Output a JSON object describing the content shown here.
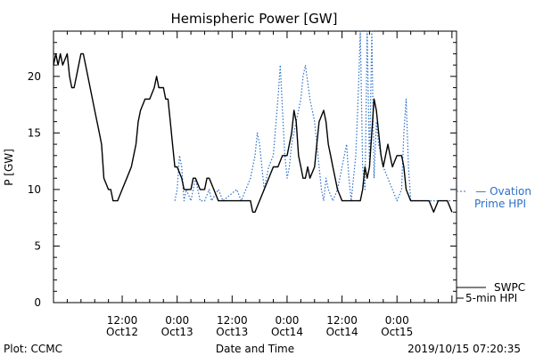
{
  "chart_data": {
    "type": "line",
    "title": "Hemispheric Power [GW]",
    "xlabel": "Date and Time",
    "ylabel": "P [GW]",
    "ylim": [
      0,
      24
    ],
    "yticks": [
      0,
      5,
      10,
      15,
      20
    ],
    "xlim": [
      -3,
      85
    ],
    "x_unit": "hours since 2019-10-12 00:00",
    "xticks": [
      {
        "x": 12,
        "time": "12:00",
        "date": "Oct12"
      },
      {
        "x": 24,
        "time": "0:00",
        "date": "Oct13"
      },
      {
        "x": 36,
        "time": "12:00",
        "date": "Oct13"
      },
      {
        "x": 48,
        "time": "0:00",
        "date": "Oct14"
      },
      {
        "x": 60,
        "time": "12:00",
        "date": "Oct14"
      },
      {
        "x": 72,
        "time": "0:00",
        "date": "Oct15"
      }
    ],
    "grid": false,
    "legend": "right",
    "series": [
      {
        "name": "SWPC 5-min HPI",
        "label_lines": [
          "SWPC",
          "5-min HPI"
        ],
        "style": "solid",
        "color": "#000000",
        "points": [
          [
            -3,
            21
          ],
          [
            -2.5,
            22
          ],
          [
            -2,
            21
          ],
          [
            -1.5,
            22
          ],
          [
            -1,
            21
          ],
          [
            0,
            22
          ],
          [
            0.5,
            20
          ],
          [
            1,
            19
          ],
          [
            1.5,
            19
          ],
          [
            2,
            20
          ],
          [
            3,
            22
          ],
          [
            3.5,
            22
          ],
          [
            4,
            21
          ],
          [
            5,
            19
          ],
          [
            6,
            17
          ],
          [
            7,
            15
          ],
          [
            7.5,
            14
          ],
          [
            8,
            11
          ],
          [
            9,
            10
          ],
          [
            9.5,
            10
          ],
          [
            10,
            9
          ],
          [
            11,
            9
          ],
          [
            12,
            10
          ],
          [
            13,
            11
          ],
          [
            14,
            12
          ],
          [
            15,
            14
          ],
          [
            15.5,
            16
          ],
          [
            16,
            17
          ],
          [
            17,
            18
          ],
          [
            18,
            18
          ],
          [
            19,
            19
          ],
          [
            19.5,
            20
          ],
          [
            20,
            19
          ],
          [
            21,
            19
          ],
          [
            21.5,
            18
          ],
          [
            22,
            18
          ],
          [
            22.5,
            16
          ],
          [
            23,
            14
          ],
          [
            23.5,
            12
          ],
          [
            24,
            12
          ],
          [
            25,
            11
          ],
          [
            25.5,
            10
          ],
          [
            26,
            10
          ],
          [
            27,
            10
          ],
          [
            27.5,
            11
          ],
          [
            28,
            11
          ],
          [
            29,
            10
          ],
          [
            29.5,
            10
          ],
          [
            30,
            10
          ],
          [
            30.5,
            11
          ],
          [
            31,
            11
          ],
          [
            32,
            10
          ],
          [
            33,
            9
          ],
          [
            34,
            9
          ],
          [
            40,
            9
          ],
          [
            40.5,
            8
          ],
          [
            41,
            8
          ],
          [
            42,
            9
          ],
          [
            43,
            10
          ],
          [
            44,
            11
          ],
          [
            45,
            12
          ],
          [
            46,
            12
          ],
          [
            47,
            13
          ],
          [
            48,
            13
          ],
          [
            48.5,
            14
          ],
          [
            49,
            15
          ],
          [
            49.5,
            17
          ],
          [
            50,
            16
          ],
          [
            50.5,
            13
          ],
          [
            51,
            12
          ],
          [
            51.5,
            11
          ],
          [
            52,
            11
          ],
          [
            52.5,
            12
          ],
          [
            53,
            11
          ],
          [
            54,
            12
          ],
          [
            54.5,
            14
          ],
          [
            55,
            16
          ],
          [
            56,
            17
          ],
          [
            56.5,
            16
          ],
          [
            57,
            14
          ],
          [
            57.5,
            13
          ],
          [
            58,
            12
          ],
          [
            59,
            10
          ],
          [
            60,
            9
          ],
          [
            61,
            9
          ],
          [
            62,
            9
          ],
          [
            64,
            9
          ],
          [
            64.5,
            10
          ],
          [
            65,
            12
          ],
          [
            65.5,
            11
          ],
          [
            66,
            12
          ],
          [
            67,
            18
          ],
          [
            67.5,
            17
          ],
          [
            68,
            15
          ],
          [
            68.5,
            13
          ],
          [
            69,
            12
          ],
          [
            69.5,
            13
          ],
          [
            70,
            14
          ],
          [
            70.5,
            13
          ],
          [
            71,
            12
          ],
          [
            72,
            13
          ],
          [
            73,
            13
          ],
          [
            73.5,
            12
          ],
          [
            74,
            10
          ],
          [
            75,
            9
          ],
          [
            76,
            9
          ],
          [
            77,
            9
          ],
          [
            78,
            9
          ],
          [
            79,
            9
          ],
          [
            80,
            8
          ],
          [
            81,
            9
          ],
          [
            82,
            9
          ],
          [
            83,
            9
          ],
          [
            84,
            8
          ]
        ]
      },
      {
        "name": "Ovation Prime HPI",
        "label_lines": [
          "— Ovation",
          "Prime HPI"
        ],
        "style": "dotted",
        "color": "#2a6fc9",
        "points": [
          [
            23.5,
            9
          ],
          [
            24,
            10
          ],
          [
            24.5,
            13
          ],
          [
            25,
            12
          ],
          [
            25.5,
            9
          ],
          [
            26,
            10
          ],
          [
            27,
            9
          ],
          [
            28,
            11
          ],
          [
            29,
            9
          ],
          [
            30,
            9
          ],
          [
            31,
            10
          ],
          [
            31.5,
            9
          ],
          [
            33,
            10
          ],
          [
            34,
            9
          ],
          [
            37,
            10
          ],
          [
            38,
            9
          ],
          [
            39,
            10
          ],
          [
            40,
            11
          ],
          [
            41,
            13
          ],
          [
            41.5,
            15
          ],
          [
            42,
            14
          ],
          [
            42.5,
            12
          ],
          [
            43,
            10
          ],
          [
            44,
            12
          ],
          [
            45,
            13
          ],
          [
            46,
            18
          ],
          [
            46.5,
            21
          ],
          [
            47,
            17
          ],
          [
            47.5,
            13
          ],
          [
            48,
            11
          ],
          [
            48.5,
            12
          ],
          [
            49,
            14
          ],
          [
            50,
            16
          ],
          [
            51,
            18
          ],
          [
            51.5,
            20
          ],
          [
            52,
            21
          ],
          [
            53,
            18
          ],
          [
            54,
            16
          ],
          [
            55,
            12
          ],
          [
            55.5,
            10
          ],
          [
            56,
            9
          ],
          [
            56.5,
            11
          ],
          [
            57,
            10
          ],
          [
            58,
            9
          ],
          [
            59,
            10
          ],
          [
            60,
            12
          ],
          [
            61,
            14
          ],
          [
            61.5,
            11
          ],
          [
            62,
            9
          ],
          [
            62.5,
            11
          ],
          [
            63,
            13
          ],
          [
            63.5,
            18
          ],
          [
            64,
            24
          ],
          [
            64.5,
            12
          ],
          [
            65,
            10
          ],
          [
            65.5,
            24
          ],
          [
            66,
            12
          ],
          [
            66.5,
            24
          ],
          [
            67,
            11
          ],
          [
            67.5,
            16
          ],
          [
            68,
            14
          ],
          [
            69,
            12
          ],
          [
            70,
            11
          ],
          [
            71,
            10
          ],
          [
            72,
            9
          ],
          [
            73,
            10
          ],
          [
            73.5,
            15
          ],
          [
            74,
            18
          ],
          [
            74.5,
            12
          ],
          [
            75,
            9
          ],
          [
            76,
            9
          ],
          [
            78,
            9
          ],
          [
            80,
            9
          ],
          [
            82,
            9
          ],
          [
            84,
            9
          ]
        ]
      }
    ],
    "annotations": {
      "left": "Plot: CCMC",
      "right": "2019/10/15 07:20:35"
    }
  }
}
